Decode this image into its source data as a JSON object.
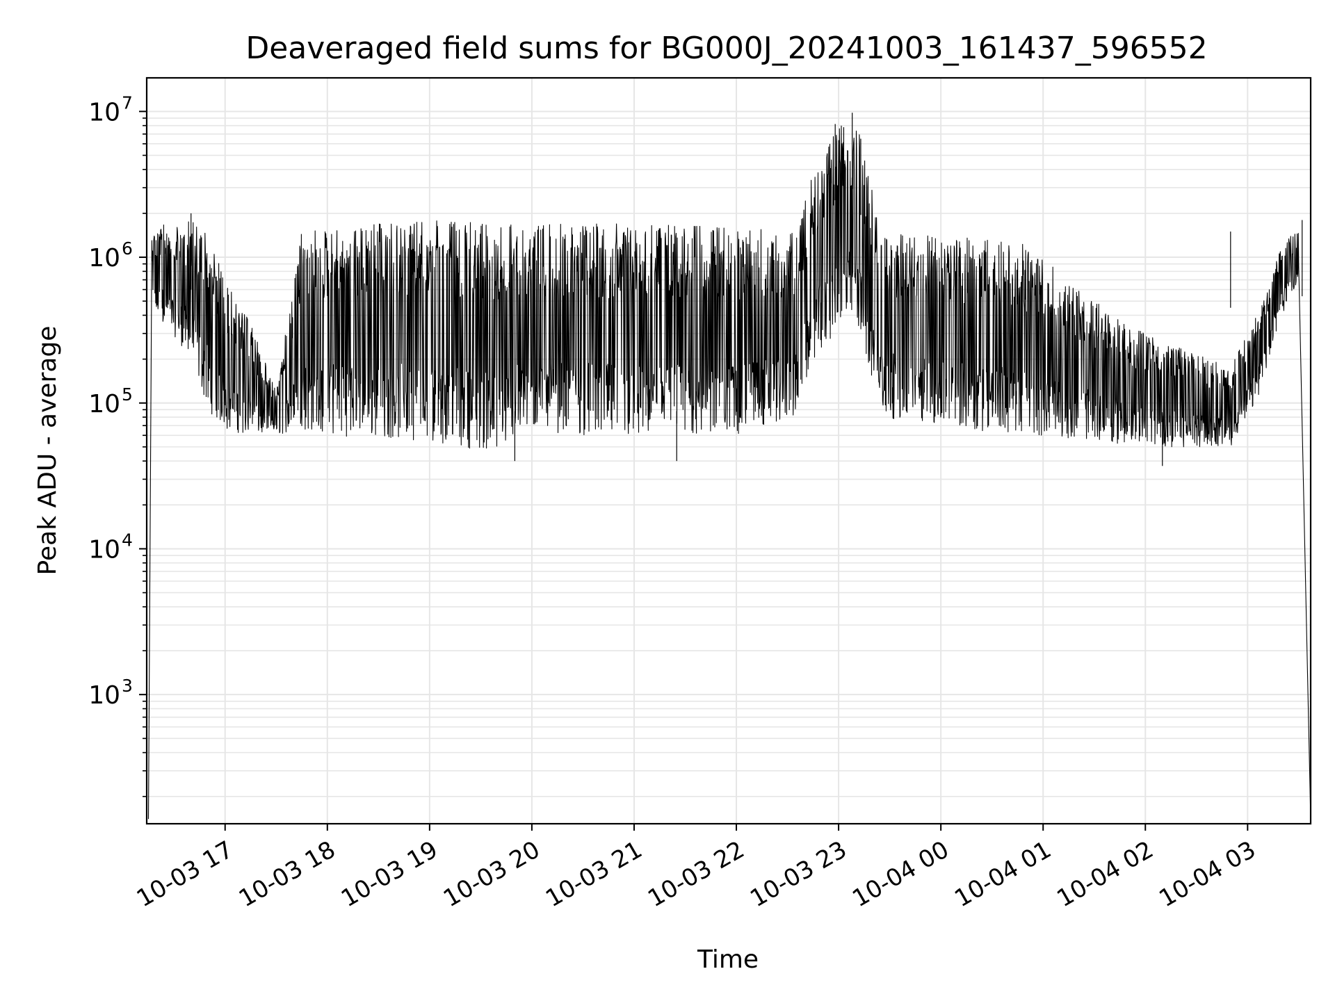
{
  "chart_data": {
    "type": "line",
    "title": "Deaveraged field sums for BG000J_20241003_161437_596552",
    "xlabel": "Time",
    "ylabel": "Peak ADU - average",
    "yscale": "log",
    "grid": true,
    "xlim": [
      "2024-10-03 16:14",
      "2024-10-04 03:37"
    ],
    "ylim": [
      130,
      17000000
    ],
    "x_ticks": [
      {
        "t": "2024-10-03 17:00",
        "label": "10-03 17"
      },
      {
        "t": "2024-10-03 18:00",
        "label": "10-03 18"
      },
      {
        "t": "2024-10-03 19:00",
        "label": "10-03 19"
      },
      {
        "t": "2024-10-03 20:00",
        "label": "10-03 20"
      },
      {
        "t": "2024-10-03 21:00",
        "label": "10-03 21"
      },
      {
        "t": "2024-10-03 22:00",
        "label": "10-03 22"
      },
      {
        "t": "2024-10-03 23:00",
        "label": "10-03 23"
      },
      {
        "t": "2024-10-04 00:00",
        "label": "10-04 00"
      },
      {
        "t": "2024-10-04 01:00",
        "label": "10-04 01"
      },
      {
        "t": "2024-10-04 02:00",
        "label": "10-04 02"
      },
      {
        "t": "2024-10-04 03:00",
        "label": "10-04 03"
      }
    ],
    "y_ticks": [
      {
        "value": 1000,
        "base": "10",
        "exp": "3"
      },
      {
        "value": 10000,
        "base": "10",
        "exp": "4"
      },
      {
        "value": 100000,
        "base": "10",
        "exp": "5"
      },
      {
        "value": 1000000,
        "base": "10",
        "exp": "6"
      },
      {
        "value": 10000000,
        "base": "10",
        "exp": "7"
      }
    ],
    "line_color": "#000000",
    "grid_color": "#e6e6e6",
    "series": [
      {
        "envelope": [
          {
            "t": "2024-10-03 16:17",
            "lo": 400000,
            "hi": 1500000
          },
          {
            "t": "2024-10-03 16:25",
            "lo": 350000,
            "hi": 1700000
          },
          {
            "t": "2024-10-03 16:40",
            "lo": 200000,
            "hi": 1800000
          },
          {
            "t": "2024-10-03 16:50",
            "lo": 90000,
            "hi": 1600000
          },
          {
            "t": "2024-10-03 17:00",
            "lo": 65000,
            "hi": 700000
          },
          {
            "t": "2024-10-03 17:15",
            "lo": 60000,
            "hi": 350000
          },
          {
            "t": "2024-10-03 17:30",
            "lo": 60000,
            "hi": 120000
          },
          {
            "t": "2024-10-03 17:45",
            "lo": 65000,
            "hi": 1500000
          },
          {
            "t": "2024-10-03 18:00",
            "lo": 60000,
            "hi": 1600000
          },
          {
            "t": "2024-10-03 19:00",
            "lo": 55000,
            "hi": 1800000
          },
          {
            "t": "2024-10-03 19:40",
            "lo": 45000,
            "hi": 1700000
          },
          {
            "t": "2024-10-03 20:00",
            "lo": 65000,
            "hi": 1700000
          },
          {
            "t": "2024-10-03 21:00",
            "lo": 55000,
            "hi": 1700000
          },
          {
            "t": "2024-10-03 22:00",
            "lo": 60000,
            "hi": 1600000
          },
          {
            "t": "2024-10-03 22:35",
            "lo": 80000,
            "hi": 1500000
          },
          {
            "t": "2024-10-03 22:45",
            "lo": 200000,
            "hi": 4000000
          },
          {
            "t": "2024-10-03 23:00",
            "lo": 300000,
            "hi": 8000000
          },
          {
            "t": "2024-10-03 23:10",
            "lo": 400000,
            "hi": 9500000
          },
          {
            "t": "2024-10-03 23:15",
            "lo": 200000,
            "hi": 5000000
          },
          {
            "t": "2024-10-03 23:25",
            "lo": 80000,
            "hi": 1500000
          },
          {
            "t": "2024-10-04 00:00",
            "lo": 70000,
            "hi": 1400000
          },
          {
            "t": "2024-10-04 00:45",
            "lo": 60000,
            "hi": 1300000
          },
          {
            "t": "2024-10-04 01:00",
            "lo": 60000,
            "hi": 1000000
          },
          {
            "t": "2024-10-04 01:30",
            "lo": 55000,
            "hi": 500000
          },
          {
            "t": "2024-10-04 02:00",
            "lo": 50000,
            "hi": 300000
          },
          {
            "t": "2024-10-04 02:50",
            "lo": 50000,
            "hi": 180000
          },
          {
            "t": "2024-10-04 03:05",
            "lo": 100000,
            "hi": 400000
          },
          {
            "t": "2024-10-04 03:20",
            "lo": 400000,
            "hi": 1200000
          },
          {
            "t": "2024-10-04 03:30",
            "lo": 700000,
            "hi": 1600000
          }
        ],
        "spikes": [
          {
            "t": "2024-10-03 16:40",
            "value": 2000000
          },
          {
            "t": "2024-10-03 22:58",
            "value": 8200000
          },
          {
            "t": "2024-10-03 23:03",
            "value": 7800000
          },
          {
            "t": "2024-10-03 23:08",
            "value": 9800000
          },
          {
            "t": "2024-10-03 23:13",
            "value": 6500000
          },
          {
            "t": "2024-10-04 02:50",
            "value": 1500000
          },
          {
            "t": "2024-10-04 03:32",
            "value": 1800000
          }
        ],
        "dips": [
          {
            "t": "2024-10-03 16:15",
            "value": 140
          },
          {
            "t": "2024-10-03 19:50",
            "value": 40000
          },
          {
            "t": "2024-10-03 21:25",
            "value": 40000
          },
          {
            "t": "2024-10-04 02:10",
            "value": 37000
          },
          {
            "t": "2024-10-04 03:37",
            "value": 140
          }
        ]
      }
    ]
  }
}
